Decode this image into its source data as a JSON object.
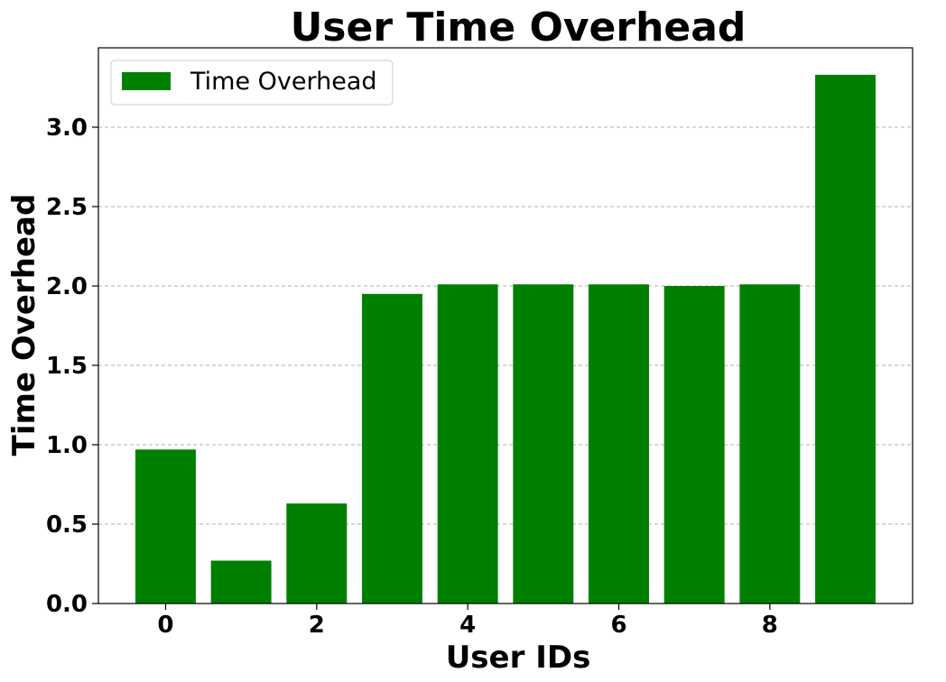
{
  "chart_data": {
    "type": "bar",
    "title": "User Time Overhead",
    "xlabel": "User IDs",
    "ylabel": "Time Overhead",
    "x": [
      0,
      1,
      2,
      3,
      4,
      5,
      6,
      7,
      8,
      9
    ],
    "values": [
      0.97,
      0.27,
      0.63,
      1.95,
      2.01,
      2.01,
      2.01,
      2.0,
      2.01,
      3.33
    ],
    "series_name": "Time Overhead",
    "xticks": [
      0,
      2,
      4,
      6,
      8
    ],
    "yticks": [
      "0.0",
      "0.5",
      "1.0",
      "1.5",
      "2.0",
      "2.5",
      "3.0"
    ],
    "xlim": [
      -0.89,
      9.89
    ],
    "ylim": [
      0,
      3.5
    ],
    "grid": "horizontal-dashed",
    "legend": "top-left",
    "color": "#008000"
  }
}
